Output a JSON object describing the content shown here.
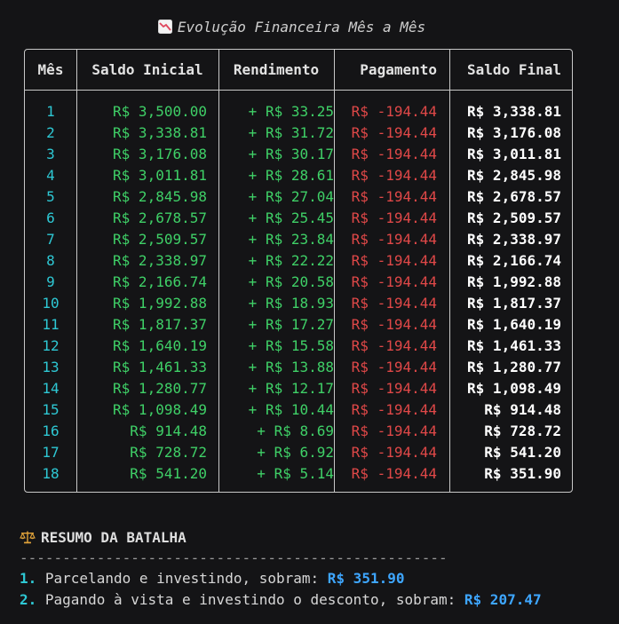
{
  "title": "Evolução Financeira Mês a Mês",
  "title_icon": "chart-decreasing-icon",
  "headers": {
    "mes": "Mês",
    "saldo_inicial": "Saldo Inicial",
    "rendimento": "Rendimento",
    "pagamento": "Pagamento",
    "saldo_final": "Saldo Final"
  },
  "rows": [
    {
      "mes": "1",
      "saldo_inicial": "R$ 3,500.00",
      "rendimento": "+ R$ 33.25",
      "pagamento": "R$ -194.44",
      "saldo_final": "R$ 3,338.81"
    },
    {
      "mes": "2",
      "saldo_inicial": "R$ 3,338.81",
      "rendimento": "+ R$ 31.72",
      "pagamento": "R$ -194.44",
      "saldo_final": "R$ 3,176.08"
    },
    {
      "mes": "3",
      "saldo_inicial": "R$ 3,176.08",
      "rendimento": "+ R$ 30.17",
      "pagamento": "R$ -194.44",
      "saldo_final": "R$ 3,011.81"
    },
    {
      "mes": "4",
      "saldo_inicial": "R$ 3,011.81",
      "rendimento": "+ R$ 28.61",
      "pagamento": "R$ -194.44",
      "saldo_final": "R$ 2,845.98"
    },
    {
      "mes": "5",
      "saldo_inicial": "R$ 2,845.98",
      "rendimento": "+ R$ 27.04",
      "pagamento": "R$ -194.44",
      "saldo_final": "R$ 2,678.57"
    },
    {
      "mes": "6",
      "saldo_inicial": "R$ 2,678.57",
      "rendimento": "+ R$ 25.45",
      "pagamento": "R$ -194.44",
      "saldo_final": "R$ 2,509.57"
    },
    {
      "mes": "7",
      "saldo_inicial": "R$ 2,509.57",
      "rendimento": "+ R$ 23.84",
      "pagamento": "R$ -194.44",
      "saldo_final": "R$ 2,338.97"
    },
    {
      "mes": "8",
      "saldo_inicial": "R$ 2,338.97",
      "rendimento": "+ R$ 22.22",
      "pagamento": "R$ -194.44",
      "saldo_final": "R$ 2,166.74"
    },
    {
      "mes": "9",
      "saldo_inicial": "R$ 2,166.74",
      "rendimento": "+ R$ 20.58",
      "pagamento": "R$ -194.44",
      "saldo_final": "R$ 1,992.88"
    },
    {
      "mes": "10",
      "saldo_inicial": "R$ 1,992.88",
      "rendimento": "+ R$ 18.93",
      "pagamento": "R$ -194.44",
      "saldo_final": "R$ 1,817.37"
    },
    {
      "mes": "11",
      "saldo_inicial": "R$ 1,817.37",
      "rendimento": "+ R$ 17.27",
      "pagamento": "R$ -194.44",
      "saldo_final": "R$ 1,640.19"
    },
    {
      "mes": "12",
      "saldo_inicial": "R$ 1,640.19",
      "rendimento": "+ R$ 15.58",
      "pagamento": "R$ -194.44",
      "saldo_final": "R$ 1,461.33"
    },
    {
      "mes": "13",
      "saldo_inicial": "R$ 1,461.33",
      "rendimento": "+ R$ 13.88",
      "pagamento": "R$ -194.44",
      "saldo_final": "R$ 1,280.77"
    },
    {
      "mes": "14",
      "saldo_inicial": "R$ 1,280.77",
      "rendimento": "+ R$ 12.17",
      "pagamento": "R$ -194.44",
      "saldo_final": "R$ 1,098.49"
    },
    {
      "mes": "15",
      "saldo_inicial": "R$ 1,098.49",
      "rendimento": "+ R$ 10.44",
      "pagamento": "R$ -194.44",
      "saldo_final": "R$ 914.48"
    },
    {
      "mes": "16",
      "saldo_inicial": "R$ 914.48",
      "rendimento": "+ R$ 8.69",
      "pagamento": "R$ -194.44",
      "saldo_final": "R$ 728.72"
    },
    {
      "mes": "17",
      "saldo_inicial": "R$ 728.72",
      "rendimento": "+ R$ 6.92",
      "pagamento": "R$ -194.44",
      "saldo_final": "R$ 541.20"
    },
    {
      "mes": "18",
      "saldo_inicial": "R$ 541.20",
      "rendimento": "+ R$ 5.14",
      "pagamento": "R$ -194.44",
      "saldo_final": "R$ 351.90"
    }
  ],
  "summary": {
    "icon": "balance-scale-icon",
    "title": "RESUMO DA BATALHA",
    "divider": "--------------------------------------------------",
    "lines": [
      {
        "num": "1.",
        "text": " Parcelando e investindo, sobram: ",
        "value": "R$ 351.90"
      },
      {
        "num": "2.",
        "text": " Pagando à vista e investindo o desconto, sobram: ",
        "value": "R$ 207.47"
      }
    ]
  },
  "colors": {
    "background": "#141416",
    "month": "#2ec8d4",
    "positive": "#3fd067",
    "negative": "#e04848",
    "final": "#ffffff",
    "highlight_value": "#3ea6ff"
  }
}
